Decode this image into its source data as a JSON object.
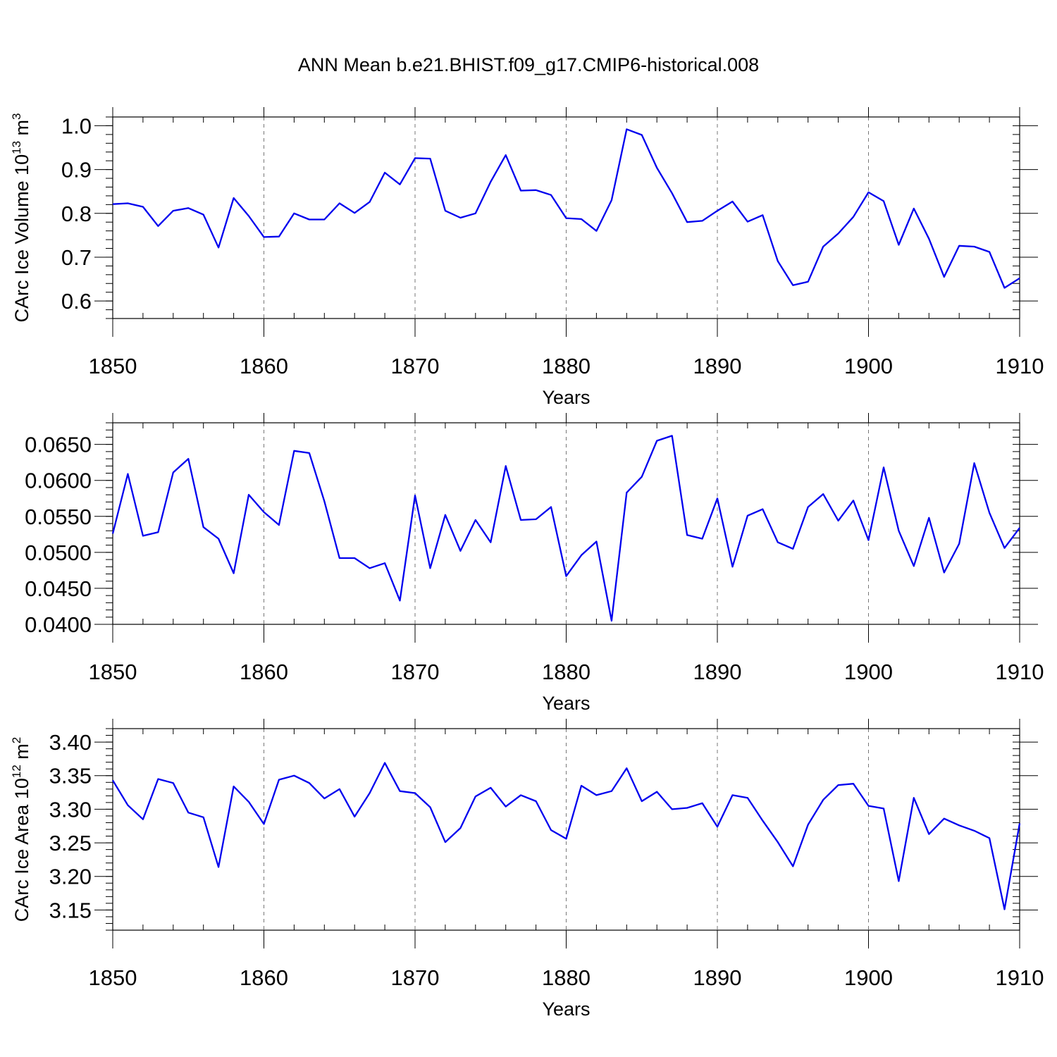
{
  "chart_data": [
    {
      "type": "line",
      "title": "ANN Mean b.e21.BHIST.f09_g17.CMIP6-historical.008",
      "ylabel": {
        "text": "CArc Ice Volume 10",
        "sup": "13",
        "unit": " m",
        "unit_sup": "3"
      },
      "xlabel": "Years",
      "xlim": [
        1850,
        1910
      ],
      "ylim": [
        0.56,
        1.02
      ],
      "xticks": [
        "1850",
        "1860",
        "1870",
        "1880",
        "1890",
        "1900",
        "1910"
      ],
      "yticks": [
        "0.6",
        "0.7",
        "0.8",
        "0.9",
        "1.0"
      ],
      "grid": "vertical-dashed",
      "series": [
        {
          "color": "#0000ee",
          "x": [
            1850,
            1851,
            1852,
            1853,
            1854,
            1855,
            1856,
            1857,
            1858,
            1859,
            1860,
            1861,
            1862,
            1863,
            1864,
            1865,
            1866,
            1867,
            1868,
            1869,
            1870,
            1871,
            1872,
            1873,
            1874,
            1875,
            1876,
            1877,
            1878,
            1879,
            1880,
            1881,
            1882,
            1883,
            1884,
            1885,
            1886,
            1887,
            1888,
            1889,
            1890,
            1891,
            1892,
            1893,
            1894,
            1895,
            1896,
            1897,
            1898,
            1899,
            1900,
            1901,
            1902,
            1903,
            1904,
            1905,
            1906,
            1907,
            1908,
            1909,
            1910
          ],
          "values": [
            0.821,
            0.823,
            0.815,
            0.771,
            0.806,
            0.812,
            0.797,
            0.722,
            0.835,
            0.794,
            0.746,
            0.747,
            0.8,
            0.786,
            0.786,
            0.823,
            0.801,
            0.826,
            0.893,
            0.866,
            0.926,
            0.925,
            0.806,
            0.79,
            0.8,
            0.872,
            0.933,
            0.852,
            0.853,
            0.842,
            0.789,
            0.787,
            0.76,
            0.83,
            0.992,
            0.979,
            0.904,
            0.846,
            0.78,
            0.783,
            0.806,
            0.827,
            0.781,
            0.796,
            0.691,
            0.636,
            0.644,
            0.724,
            0.754,
            0.792,
            0.848,
            0.828,
            0.728,
            0.811,
            0.742,
            0.655,
            0.726,
            0.724,
            0.712,
            0.63,
            0.652
          ]
        }
      ]
    },
    {
      "type": "line",
      "ylabel": "",
      "xlabel": "Years",
      "xlim": [
        1850,
        1910
      ],
      "ylim": [
        0.04,
        0.068
      ],
      "xticks": [
        "1850",
        "1860",
        "1870",
        "1880",
        "1890",
        "1900",
        "1910"
      ],
      "yticks": [
        "0.0400",
        "0.0450",
        "0.0500",
        "0.0550",
        "0.0600",
        "0.0650"
      ],
      "grid": "vertical-dashed",
      "series": [
        {
          "color": "#0000ee",
          "x": [
            1850,
            1851,
            1852,
            1853,
            1854,
            1855,
            1856,
            1857,
            1858,
            1859,
            1860,
            1861,
            1862,
            1863,
            1864,
            1865,
            1866,
            1867,
            1868,
            1869,
            1870,
            1871,
            1872,
            1873,
            1874,
            1875,
            1876,
            1877,
            1878,
            1879,
            1880,
            1881,
            1882,
            1883,
            1884,
            1885,
            1886,
            1887,
            1888,
            1889,
            1890,
            1891,
            1892,
            1893,
            1894,
            1895,
            1896,
            1897,
            1898,
            1899,
            1900,
            1901,
            1902,
            1903,
            1904,
            1905,
            1906,
            1907,
            1908,
            1909,
            1910
          ],
          "values": [
            0.0526,
            0.0609,
            0.0523,
            0.0528,
            0.0611,
            0.063,
            0.0535,
            0.0519,
            0.0471,
            0.058,
            0.0556,
            0.0538,
            0.0641,
            0.0638,
            0.0571,
            0.0492,
            0.0492,
            0.0478,
            0.0485,
            0.0433,
            0.0579,
            0.0478,
            0.0552,
            0.0502,
            0.0545,
            0.0514,
            0.062,
            0.0545,
            0.0546,
            0.0563,
            0.0467,
            0.0496,
            0.0515,
            0.0405,
            0.0583,
            0.0605,
            0.0655,
            0.0662,
            0.0524,
            0.0519,
            0.0575,
            0.048,
            0.0551,
            0.056,
            0.0514,
            0.0505,
            0.0563,
            0.0581,
            0.0544,
            0.0572,
            0.0517,
            0.0618,
            0.053,
            0.0481,
            0.0548,
            0.0472,
            0.0512,
            0.0624,
            0.0555,
            0.0506,
            0.0534
          ]
        }
      ]
    },
    {
      "type": "line",
      "ylabel": {
        "text": "CArc Ice Area 10",
        "sup": "12",
        "unit": " m",
        "unit_sup": "2"
      },
      "xlabel": "Years",
      "xlim": [
        1850,
        1910
      ],
      "ylim": [
        3.12,
        3.42
      ],
      "xticks": [
        "1850",
        "1860",
        "1870",
        "1880",
        "1890",
        "1900",
        "1910"
      ],
      "yticks": [
        "3.15",
        "3.20",
        "3.25",
        "3.30",
        "3.35",
        "3.40"
      ],
      "grid": "vertical-dashed",
      "series": [
        {
          "color": "#0000ee",
          "x": [
            1850,
            1851,
            1852,
            1853,
            1854,
            1855,
            1856,
            1857,
            1858,
            1859,
            1860,
            1861,
            1862,
            1863,
            1864,
            1865,
            1866,
            1867,
            1868,
            1869,
            1870,
            1871,
            1872,
            1873,
            1874,
            1875,
            1876,
            1877,
            1878,
            1879,
            1880,
            1881,
            1882,
            1883,
            1884,
            1885,
            1886,
            1887,
            1888,
            1889,
            1890,
            1891,
            1892,
            1893,
            1894,
            1895,
            1896,
            1897,
            1898,
            1899,
            1900,
            1901,
            1902,
            1903,
            1904,
            1905,
            1906,
            1907,
            1908,
            1909,
            1910
          ],
          "values": [
            3.343,
            3.306,
            3.285,
            3.345,
            3.339,
            3.295,
            3.288,
            3.214,
            3.334,
            3.311,
            3.278,
            3.344,
            3.35,
            3.339,
            3.316,
            3.33,
            3.289,
            3.324,
            3.369,
            3.327,
            3.324,
            3.303,
            3.251,
            3.272,
            3.319,
            3.332,
            3.304,
            3.321,
            3.312,
            3.269,
            3.256,
            3.335,
            3.321,
            3.327,
            3.361,
            3.312,
            3.326,
            3.3,
            3.302,
            3.309,
            3.274,
            3.321,
            3.317,
            3.283,
            3.251,
            3.215,
            3.277,
            3.314,
            3.336,
            3.338,
            3.305,
            3.301,
            3.193,
            3.317,
            3.263,
            3.286,
            3.276,
            3.268,
            3.257,
            3.151,
            3.279
          ]
        }
      ]
    }
  ]
}
